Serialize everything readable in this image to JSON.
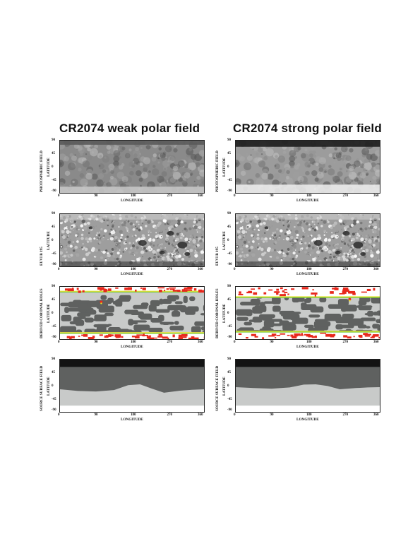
{
  "titles": {
    "left": "CR2074 weak polar field",
    "right": "CR2074 strong polar field"
  },
  "row_labels": [
    "PHOTOSPHERIC FIELD",
    "EUVI B 195",
    "DERIVED CORONAL HOLES",
    "SOURCE SURFACE FIELD"
  ],
  "axes": {
    "ylabel": "LATITUDE",
    "xlabel": "LONGITUDE",
    "yticks": [
      "90",
      "45",
      "0",
      "-45",
      "-90"
    ],
    "xticks": [
      "0",
      "90",
      "180",
      "270",
      "360"
    ]
  },
  "colors": {
    "coronal_red": "#e8281c",
    "coronal_yellow": "#e7e21e",
    "coronal_green": "#77cc3a",
    "dark_gray": "#5f6160",
    "light_gray": "#c8cac9",
    "black": "#131313"
  },
  "chart_data": [
    {
      "type": "heatmap",
      "column": "weak polar field",
      "row": "source surface field",
      "title": "",
      "xlabel": "LONGITUDE",
      "ylabel": "LATITUDE",
      "xlim": [
        0,
        360
      ],
      "ylim": [
        -90,
        90
      ],
      "neutral_line": {
        "x": [
          0,
          45,
          90,
          135,
          170,
          200,
          230,
          260,
          300,
          330,
          360
        ],
        "y": [
          -12,
          -18,
          -20,
          -15,
          2,
          5,
          -10,
          -24,
          -17,
          -14,
          -12
        ]
      }
    },
    {
      "type": "heatmap",
      "column": "strong polar field",
      "row": "source surface field",
      "title": "",
      "xlabel": "LONGITUDE",
      "ylabel": "LATITUDE",
      "xlim": [
        0,
        360
      ],
      "ylim": [
        -90,
        90
      ],
      "neutral_line": {
        "x": [
          0,
          45,
          90,
          135,
          170,
          200,
          230,
          260,
          300,
          330,
          360
        ],
        "y": [
          -5,
          -8,
          -10,
          -6,
          4,
          5,
          -1,
          -12,
          -8,
          -6,
          -5
        ]
      }
    }
  ]
}
